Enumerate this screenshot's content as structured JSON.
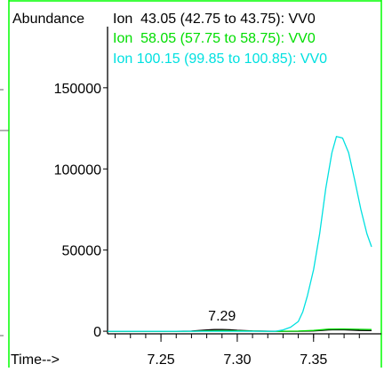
{
  "chart_data": {
    "type": "line",
    "title": "",
    "ylabel": "Abundance",
    "xlabel": "Time-->",
    "xlim": [
      7.215,
      7.388
    ],
    "ylim": [
      -1600,
      180000
    ],
    "x_ticks": [
      {
        "value": 7.25,
        "label": "7.25"
      },
      {
        "value": 7.3,
        "label": "7.30"
      },
      {
        "value": 7.35,
        "label": "7.35"
      }
    ],
    "x_minor_step": 0.01,
    "y_ticks": [
      {
        "value": 0,
        "label": "0"
      },
      {
        "value": 50000,
        "label": "50000"
      },
      {
        "value": 100000,
        "label": "100000"
      },
      {
        "value": 150000,
        "label": "150000"
      }
    ],
    "series": [
      {
        "name": "Ion  43.05 (42.75 to 43.75): VV0",
        "color": "#000000",
        "x": [
          7.215,
          7.26,
          7.27,
          7.275,
          7.28,
          7.285,
          7.29,
          7.295,
          7.3,
          7.305,
          7.31,
          7.32,
          7.33,
          7.34,
          7.35,
          7.355,
          7.36,
          7.365,
          7.37,
          7.375,
          7.38,
          7.388
        ],
        "y": [
          0,
          0,
          120,
          420,
          800,
          1000,
          1100,
          900,
          600,
          350,
          150,
          40,
          0,
          0,
          200,
          500,
          800,
          900,
          850,
          700,
          500,
          400
        ]
      },
      {
        "name": "Ion  58.05 (57.75 to 58.75): VV0",
        "color": "#00dd00",
        "x": [
          7.215,
          7.27,
          7.28,
          7.29,
          7.3,
          7.31,
          7.32,
          7.33,
          7.34,
          7.35,
          7.36,
          7.37,
          7.38,
          7.388
        ],
        "y": [
          0,
          0,
          200,
          300,
          200,
          100,
          0,
          0,
          100,
          500,
          1300,
          1400,
          1200,
          1000
        ]
      },
      {
        "name": "Ion 100.15 (99.85 to 100.85): VV0",
        "color": "#00e0e0",
        "x": [
          7.215,
          7.325,
          7.33,
          7.335,
          7.34,
          7.343,
          7.346,
          7.35,
          7.354,
          7.358,
          7.362,
          7.365,
          7.369,
          7.373,
          7.377,
          7.381,
          7.385,
          7.388
        ],
        "y": [
          0,
          0,
          800,
          2500,
          6000,
          12000,
          22000,
          38000,
          60000,
          88000,
          110000,
          120000,
          119000,
          110000,
          93000,
          75000,
          60000,
          52000
        ]
      }
    ],
    "annotations": [
      {
        "text": "7.29",
        "x": 7.29,
        "y": 1100
      }
    ]
  }
}
